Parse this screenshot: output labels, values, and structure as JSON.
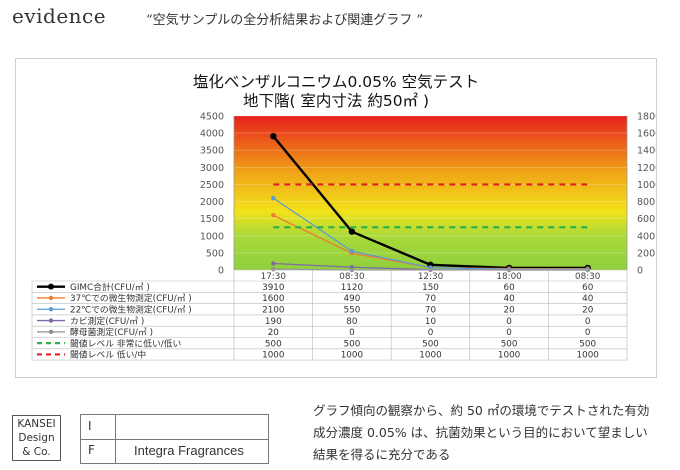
{
  "header": {
    "brand": "evidence",
    "subtitle": "“空気サンプルの全分析結果および関連グラフ ”"
  },
  "chart_data": {
    "type": "line",
    "title": [
      "塩化ベンザルコニウム0.05% 空気テスト",
      "地下階( 室内寸法 約50㎡ )"
    ],
    "categories": [
      "17:30",
      "08:30",
      "12:30",
      "18:00",
      "08:30"
    ],
    "y_left": {
      "lim": [
        0,
        4500
      ],
      "ticks": [
        "0",
        "500",
        "1000",
        "1500",
        "2000",
        "2500",
        "3000",
        "3500",
        "4000",
        "4500"
      ]
    },
    "y_right": {
      "lim": [
        0,
        1800
      ],
      "ticks": [
        "0",
        "200",
        "400",
        "600",
        "800",
        "1000",
        "1200",
        "1400",
        "1600",
        "1800"
      ]
    },
    "series": [
      {
        "name": "GIMC合計(CFU/㎥ )",
        "values": [
          3910,
          1120,
          150,
          60,
          60
        ],
        "color": "#000000",
        "style": "solid-thick"
      },
      {
        "name": "37℃での微生物測定(CFU/㎥ )",
        "values": [
          1600,
          490,
          70,
          40,
          40
        ],
        "color": "#ed7d31",
        "style": "solid"
      },
      {
        "name": "22℃での微生物測定(CFU/㎥ )",
        "values": [
          2100,
          550,
          70,
          20,
          20
        ],
        "color": "#5b9bd5",
        "style": "solid"
      },
      {
        "name": "カビ測定(CFU/㎥ )",
        "values": [
          190,
          80,
          10,
          0,
          0
        ],
        "color": "#7f6aa8",
        "style": "solid"
      },
      {
        "name": "酵母菌測定(CFU/㎥ )",
        "values": [
          20,
          0,
          0,
          0,
          0
        ],
        "color": "#8f8f8f",
        "style": "solid"
      },
      {
        "name": "閾値レベル 非常に低い/低い",
        "values": [
          500,
          500,
          500,
          500,
          500
        ],
        "color": "#2db34a",
        "style": "dashed",
        "axis": "right"
      },
      {
        "name": "閾値レベル 低い/中",
        "values": [
          1000,
          1000,
          1000,
          1000,
          1000
        ],
        "color": "#e02020",
        "style": "dashed",
        "axis": "right"
      }
    ],
    "table_values": [
      [
        "3910",
        "1120",
        "150",
        "60",
        "60"
      ],
      [
        "1600",
        "490",
        "70",
        "40",
        "40"
      ],
      [
        "2100",
        "550",
        "70",
        "20",
        "20"
      ],
      [
        "190",
        "80",
        "10",
        "0",
        "0"
      ],
      [
        "20",
        "0",
        "0",
        "0",
        "0"
      ],
      [
        "500",
        "500",
        "500",
        "500",
        "500"
      ],
      [
        "1000",
        "1000",
        "1000",
        "1000",
        "1000"
      ]
    ],
    "background_gradient": [
      "#e8211b",
      "#f0a818",
      "#f2e21a",
      "#8fcf3c"
    ],
    "grid": true
  },
  "footer": {
    "logo_lines": [
      "KANSEI",
      "Design",
      "& Co."
    ],
    "info_rows": [
      {
        "key": "I",
        "value": ""
      },
      {
        "key": "F",
        "value": "Integra Fragrances"
      }
    ],
    "description_lines": [
      "グラフ傾向の観察から、約 50 ㎡の環境でテストされた有効",
      "成分濃度 0.05% は、抗菌効果という目的において望ましい",
      "結果を得るに充分である"
    ]
  }
}
